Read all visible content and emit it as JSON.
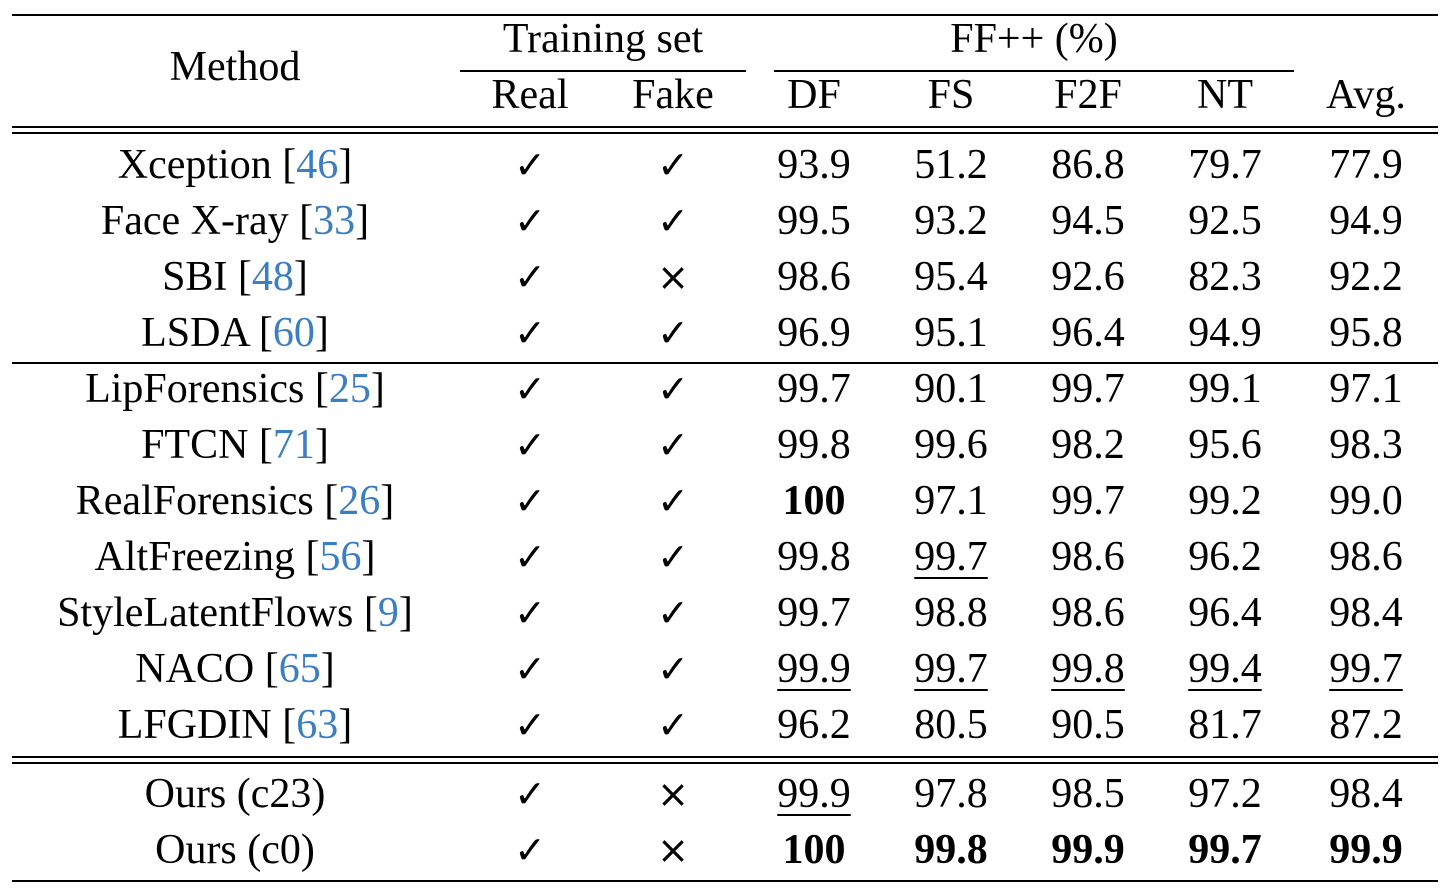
{
  "header": {
    "method": "Method",
    "training_set": "Training set",
    "ffpp": "FF++ (%)",
    "columns": [
      "Real",
      "Fake",
      "DF",
      "FS",
      "F2F",
      "NT",
      "Avg."
    ]
  },
  "symbols": {
    "check": "✓",
    "cross": "×"
  },
  "groups": [
    [
      {
        "name": "Xception",
        "ref": "46",
        "real": true,
        "fake": true,
        "vals": [
          "93.9",
          "51.2",
          "86.8",
          "79.7",
          "77.9"
        ],
        "bold": [],
        "ul": []
      },
      {
        "name": "Face X-ray",
        "ref": "33",
        "real": true,
        "fake": true,
        "vals": [
          "99.5",
          "93.2",
          "94.5",
          "92.5",
          "94.9"
        ],
        "bold": [],
        "ul": []
      },
      {
        "name": "SBI",
        "ref": "48",
        "real": true,
        "fake": false,
        "vals": [
          "98.6",
          "95.4",
          "92.6",
          "82.3",
          "92.2"
        ],
        "bold": [],
        "ul": []
      },
      {
        "name": "LSDA",
        "ref": "60",
        "real": true,
        "fake": true,
        "vals": [
          "96.9",
          "95.1",
          "96.4",
          "94.9",
          "95.8"
        ],
        "bold": [],
        "ul": []
      }
    ],
    [
      {
        "name": "LipForensics",
        "ref": "25",
        "real": true,
        "fake": true,
        "vals": [
          "99.7",
          "90.1",
          "99.7",
          "99.1",
          "97.1"
        ],
        "bold": [],
        "ul": []
      },
      {
        "name": "FTCN",
        "ref": "71",
        "real": true,
        "fake": true,
        "vals": [
          "99.8",
          "99.6",
          "98.2",
          "95.6",
          "98.3"
        ],
        "bold": [],
        "ul": []
      },
      {
        "name": "RealForensics",
        "ref": "26",
        "real": true,
        "fake": true,
        "vals": [
          "100",
          "97.1",
          "99.7",
          "99.2",
          "99.0"
        ],
        "bold": [
          0
        ],
        "ul": []
      },
      {
        "name": "AltFreezing",
        "ref": "56",
        "real": true,
        "fake": true,
        "vals": [
          "99.8",
          "99.7",
          "98.6",
          "96.2",
          "98.6"
        ],
        "bold": [],
        "ul": [
          1
        ]
      },
      {
        "name": "StyleLatentFlows",
        "ref": "9",
        "real": true,
        "fake": true,
        "vals": [
          "99.7",
          "98.8",
          "98.6",
          "96.4",
          "98.4"
        ],
        "bold": [],
        "ul": []
      },
      {
        "name": "NACO",
        "ref": "65",
        "real": true,
        "fake": true,
        "vals": [
          "99.9",
          "99.7",
          "99.8",
          "99.4",
          "99.7"
        ],
        "bold": [],
        "ul": [
          0,
          1,
          2,
          3,
          4
        ]
      },
      {
        "name": "LFGDIN",
        "ref": "63",
        "real": true,
        "fake": true,
        "vals": [
          "96.2",
          "80.5",
          "90.5",
          "81.7",
          "87.2"
        ],
        "bold": [],
        "ul": []
      }
    ],
    [
      {
        "name": "Ours (c23)",
        "ref": "",
        "real": true,
        "fake": false,
        "vals": [
          "99.9",
          "97.8",
          "98.5",
          "97.2",
          "98.4"
        ],
        "bold": [],
        "ul": [
          0
        ]
      },
      {
        "name": "Ours (c0)",
        "ref": "",
        "real": true,
        "fake": false,
        "vals": [
          "100",
          "99.8",
          "99.9",
          "99.7",
          "99.9"
        ],
        "bold": [
          0,
          1,
          2,
          3,
          4
        ],
        "ul": []
      }
    ]
  ]
}
